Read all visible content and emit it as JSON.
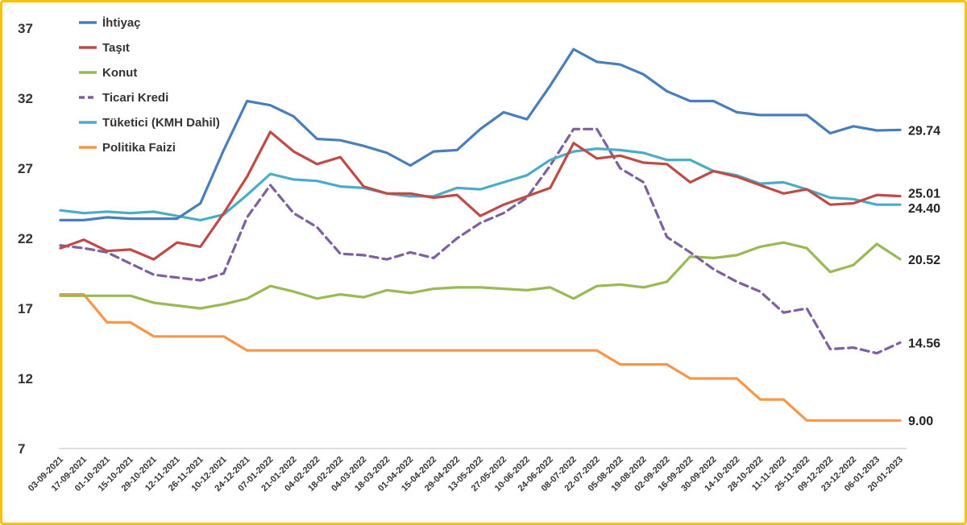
{
  "chart_data": {
    "type": "line",
    "title": "",
    "xlabel": "",
    "ylabel": "",
    "ylim": [
      7,
      37
    ],
    "yticks": [
      "37",
      "32",
      "27",
      "22",
      "17",
      "12",
      "7"
    ],
    "grid": false,
    "legend_position": "top-left",
    "x": [
      "03-09-2021",
      "17-09-2021",
      "01-10-2021",
      "15-10-2021",
      "29-10-2021",
      "12-11-2021",
      "26-11-2021",
      "10-12-2021",
      "24-12-2021",
      "07-01-2022",
      "21-01-2022",
      "04-02-2022",
      "18-02-2022",
      "04-03-2022",
      "18-03-2022",
      "01-04-2022",
      "15-04-2022",
      "29-04-2022",
      "13-05-2022",
      "27-05-2022",
      "10-06-2022",
      "24-06-2022",
      "08-07-2022",
      "22-07-2022",
      "05-08-2022",
      "19-08-2022",
      "02-09-2022",
      "16-09-2022",
      "30-09-2022",
      "14-10-2022",
      "28-10-2022",
      "11-11-2022",
      "25-11-2022",
      "09-12-2022",
      "23-12-2022",
      "06-01-2023",
      "20-01-2023"
    ],
    "series": [
      {
        "name": "İhtiyaç",
        "color": "#4A7EBB",
        "dashed": false,
        "end_label": "29.74",
        "values": [
          23.3,
          23.3,
          23.5,
          23.4,
          23.4,
          23.4,
          24.5,
          28.3,
          31.8,
          31.5,
          30.7,
          29.1,
          29.0,
          28.6,
          28.1,
          27.2,
          28.2,
          28.3,
          29.8,
          31.0,
          30.5,
          32.9,
          35.5,
          34.6,
          34.4,
          33.7,
          32.5,
          31.8,
          31.8,
          31.0,
          30.8,
          30.8,
          30.8,
          29.5,
          30.0,
          29.7,
          29.74
        ]
      },
      {
        "name": "Taşıt",
        "color": "#BE4B48",
        "dashed": false,
        "end_label": "25.01",
        "values": [
          21.3,
          21.9,
          21.1,
          21.2,
          20.5,
          21.7,
          21.4,
          23.8,
          26.4,
          29.6,
          28.2,
          27.3,
          27.8,
          25.7,
          25.2,
          25.2,
          24.9,
          25.1,
          23.6,
          24.4,
          25.0,
          25.6,
          28.8,
          27.7,
          27.9,
          27.4,
          27.3,
          26.0,
          26.8,
          26.4,
          25.8,
          25.2,
          25.5,
          24.4,
          24.5,
          25.1,
          25.01
        ]
      },
      {
        "name": "Konut",
        "color": "#98B954",
        "dashed": false,
        "end_label": "20.52",
        "values": [
          17.9,
          17.9,
          17.9,
          17.9,
          17.4,
          17.2,
          17.0,
          17.3,
          17.7,
          18.6,
          18.2,
          17.7,
          18.0,
          17.8,
          18.3,
          18.1,
          18.4,
          18.5,
          18.5,
          18.4,
          18.3,
          18.5,
          17.7,
          18.6,
          18.7,
          18.5,
          18.9,
          20.7,
          20.6,
          20.8,
          21.4,
          21.7,
          21.3,
          19.6,
          20.1,
          21.6,
          20.52
        ]
      },
      {
        "name": "Ticari Kredi",
        "color": "#7D60A0",
        "dashed": true,
        "end_label": "14.56",
        "values": [
          21.5,
          21.3,
          21.0,
          20.2,
          19.4,
          19.2,
          19.0,
          19.5,
          23.5,
          25.8,
          23.8,
          22.8,
          20.9,
          20.8,
          20.5,
          21.0,
          20.6,
          22.0,
          23.1,
          23.8,
          24.9,
          27.2,
          29.8,
          29.8,
          27.0,
          26.0,
          22.1,
          21.0,
          19.8,
          18.9,
          18.2,
          16.7,
          17.0,
          14.1,
          14.2,
          13.8,
          14.56
        ]
      },
      {
        "name": "Tüketici (KMH Dahil)",
        "color": "#4BACC6",
        "dashed": false,
        "end_label": "24.40",
        "values": [
          24.0,
          23.8,
          23.9,
          23.8,
          23.9,
          23.6,
          23.3,
          23.7,
          25.1,
          26.6,
          26.2,
          26.1,
          25.7,
          25.6,
          25.2,
          25.0,
          25.0,
          25.6,
          25.5,
          26.0,
          26.5,
          27.6,
          28.2,
          28.4,
          28.3,
          28.1,
          27.6,
          27.6,
          26.8,
          26.5,
          25.9,
          26.0,
          25.5,
          24.9,
          24.8,
          24.4,
          24.4
        ]
      },
      {
        "name": "Politika Faizi",
        "color": "#F79646",
        "dashed": false,
        "end_label": "9.00",
        "values": [
          18.0,
          18.0,
          16.0,
          16.0,
          15.0,
          15.0,
          15.0,
          15.0,
          14.0,
          14.0,
          14.0,
          14.0,
          14.0,
          14.0,
          14.0,
          14.0,
          14.0,
          14.0,
          14.0,
          14.0,
          14.0,
          14.0,
          14.0,
          14.0,
          13.0,
          13.0,
          13.0,
          12.0,
          12.0,
          12.0,
          10.5,
          10.5,
          9.0,
          9.0,
          9.0,
          9.0,
          9.0
        ]
      }
    ]
  }
}
